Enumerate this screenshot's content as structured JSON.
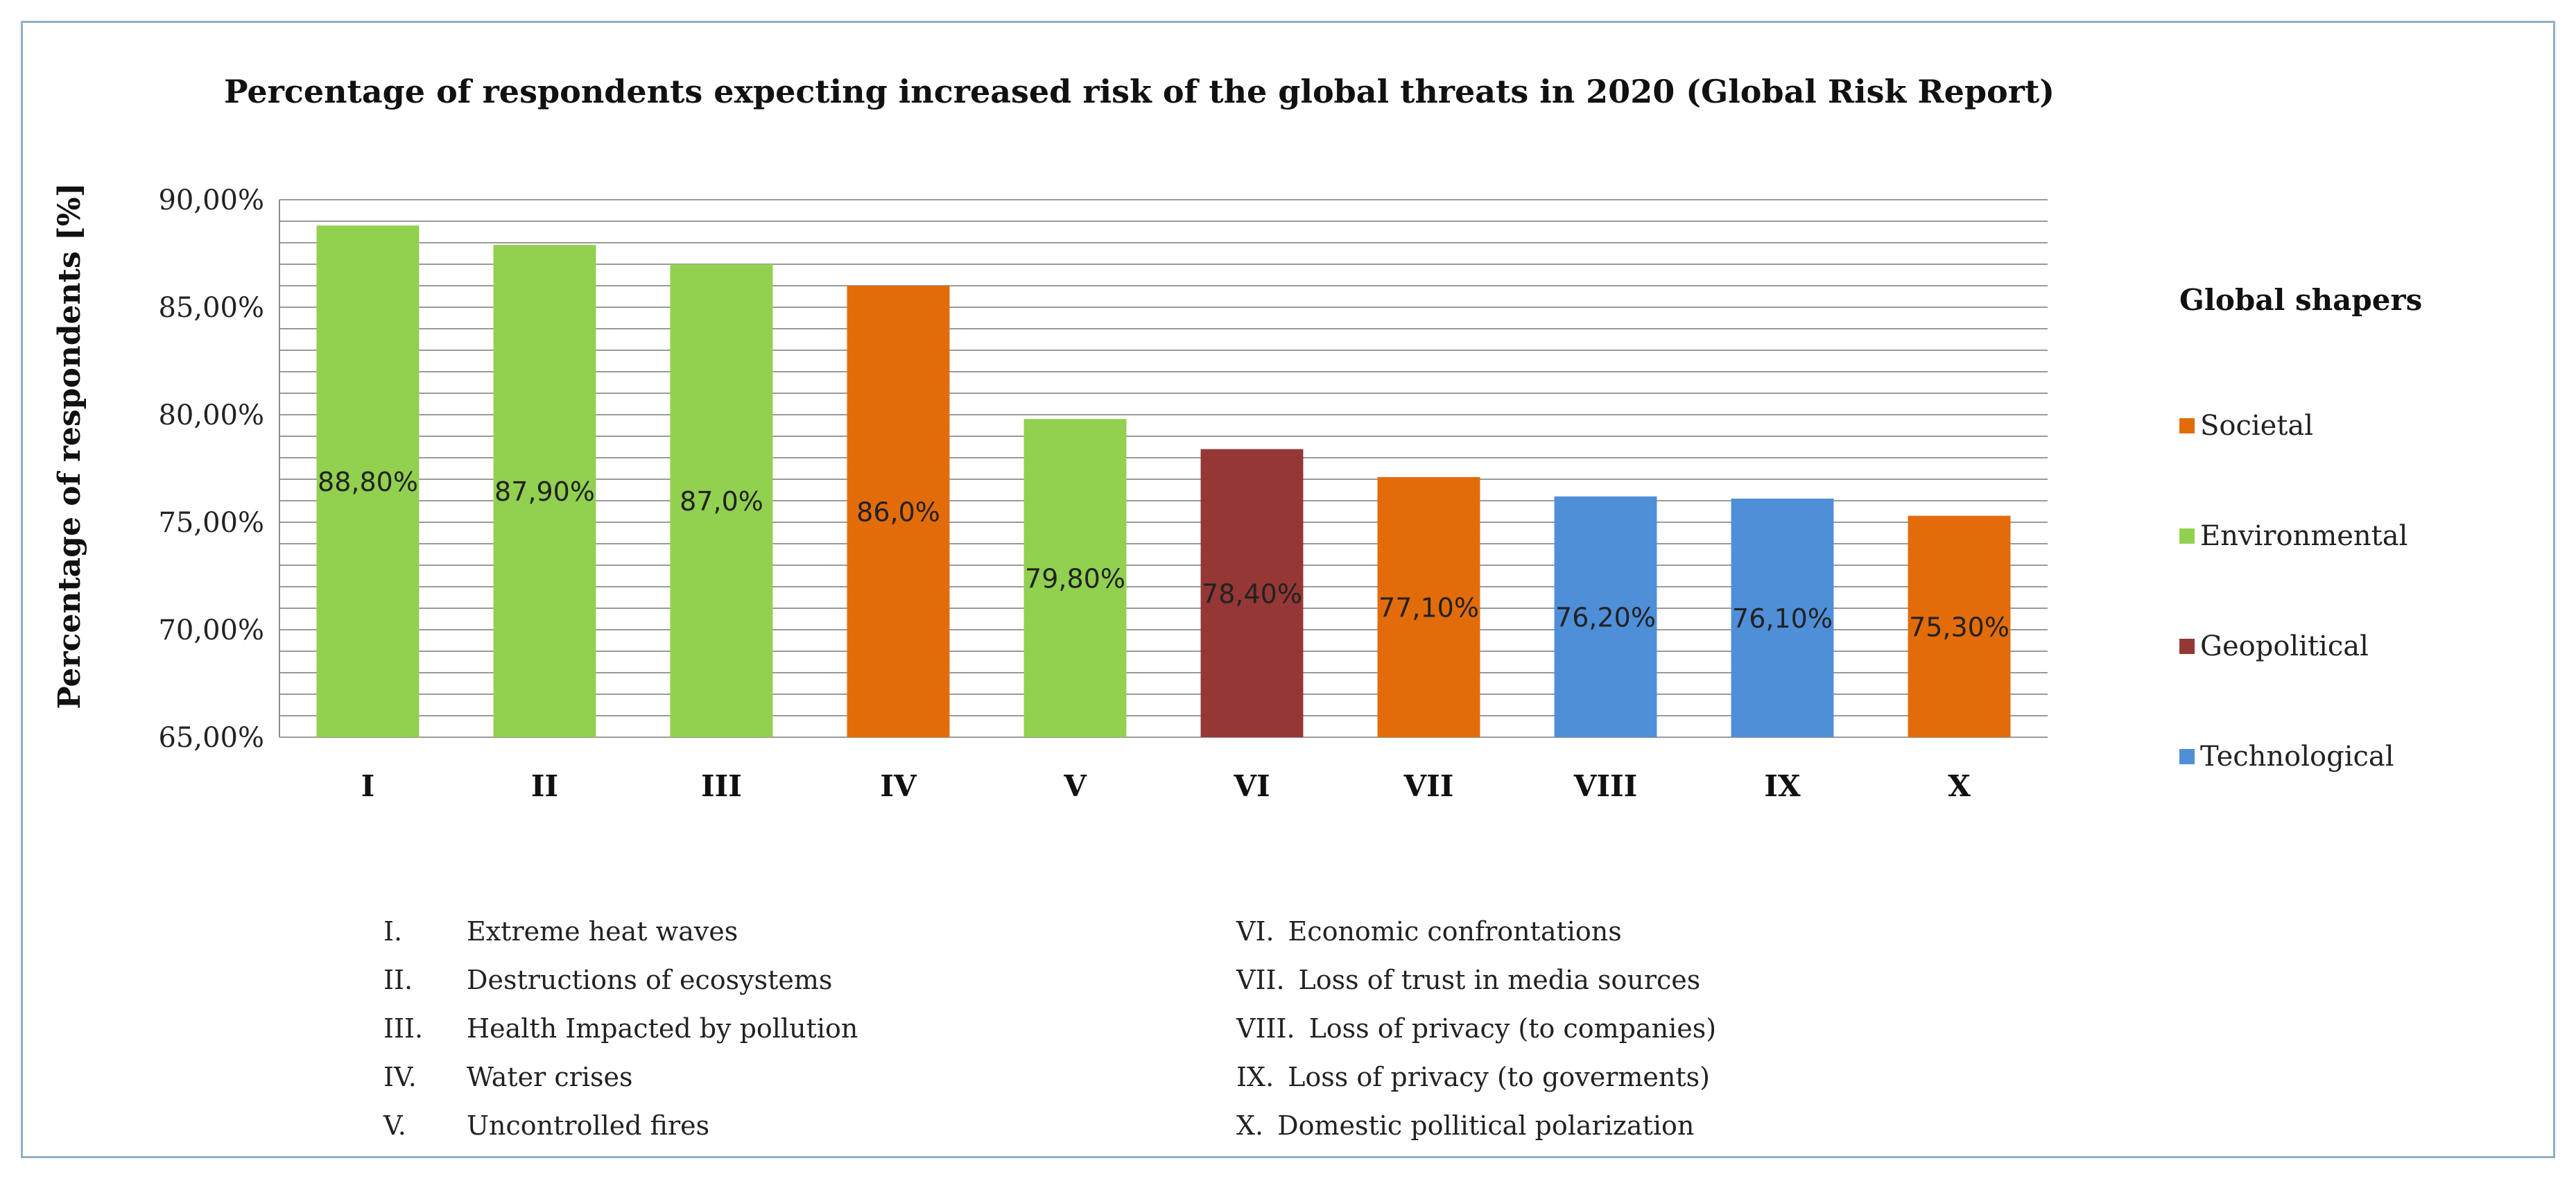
{
  "chart_data": {
    "type": "bar",
    "title": "Percentage of respondents expecting increased risk of the global threats in 2020 (Global Risk Report)",
    "ylabel": "Percentage of respondents [%]",
    "xlabel": "",
    "ylim": [
      65,
      90
    ],
    "y_ticks": [
      "65,00%",
      "70,00%",
      "75,00%",
      "80,00%",
      "85,00%",
      "90,00%"
    ],
    "grid": true,
    "legend_position": "right",
    "categories": [
      "I",
      "II",
      "III",
      "IV",
      "V",
      "VI",
      "VII",
      "VIII",
      "IX",
      "X"
    ],
    "values": [
      88.8,
      87.9,
      87.0,
      86.0,
      79.8,
      78.4,
      77.1,
      76.2,
      76.1,
      75.3
    ],
    "data_labels": [
      "88,80%",
      "87,90%",
      "87,0%",
      "86,0%",
      "79,80%",
      "78,40%",
      "77,10%",
      "76,20%",
      "76,10%",
      "75,30%"
    ],
    "bar_groups": [
      "Environmental",
      "Environmental",
      "Environmental",
      "Societal",
      "Environmental",
      "Geopolitical",
      "Societal",
      "Technological",
      "Technological",
      "Societal"
    ],
    "legend_title": "Global shapers",
    "legend": [
      {
        "name": "Societal",
        "color": "#e36c0a"
      },
      {
        "name": "Environmental",
        "color": "#92d050"
      },
      {
        "name": "Geopolitical",
        "color": "#953735"
      },
      {
        "name": "Technological",
        "color": "#4f8fd8"
      }
    ],
    "category_key": [
      {
        "num": "I.",
        "label": "Extreme heat waves"
      },
      {
        "num": "II.",
        "label": "Destructions of ecosystems"
      },
      {
        "num": "III.",
        "label": "Health Impacted by pollution"
      },
      {
        "num": "IV.",
        "label": "Water crises"
      },
      {
        "num": "V.",
        "label": "Uncontrolled fires"
      },
      {
        "num": "VI.",
        "label": "Economic confrontations"
      },
      {
        "num": "VII.",
        "label": "Loss of trust in media sources"
      },
      {
        "num": "VIII.",
        "label": "Loss of privacy (to companies)"
      },
      {
        "num": "IX.",
        "label": "Loss of privacy (to goverments)"
      },
      {
        "num": "X.",
        "label": "Domestic pollitical polarization"
      }
    ]
  }
}
